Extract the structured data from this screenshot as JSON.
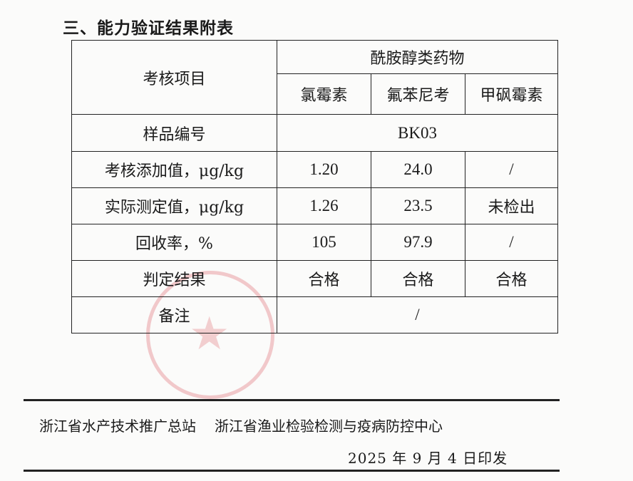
{
  "title": "三、能力验证结果附表",
  "table": {
    "header_item": "考核项目",
    "group_header": "酰胺醇类药物",
    "drugs": [
      "氯霉素",
      "氟苯尼考",
      "甲砜霉素"
    ],
    "sample_label": "样品编号",
    "sample_id": "BK03",
    "rows": [
      {
        "label": "考核添加值，μg/kg",
        "values": [
          "1.20",
          "24.0",
          "/"
        ]
      },
      {
        "label": "实际测定值，μg/kg",
        "values": [
          "1.26",
          "23.5",
          "未检出"
        ]
      },
      {
        "label": "回收率，%",
        "values": [
          "105",
          "97.9",
          "/"
        ]
      },
      {
        "label": "判定结果",
        "values": [
          "合格",
          "合格",
          "合格"
        ]
      }
    ],
    "remark_label": "备注",
    "remark_value": "/"
  },
  "footer": {
    "org1": "浙江省水产技术推广总站",
    "org2": "浙江省渔业检验检测与疫病防控中心",
    "date": "2025 年 9 月 4 日印发"
  },
  "stamp_color": "#d74650"
}
